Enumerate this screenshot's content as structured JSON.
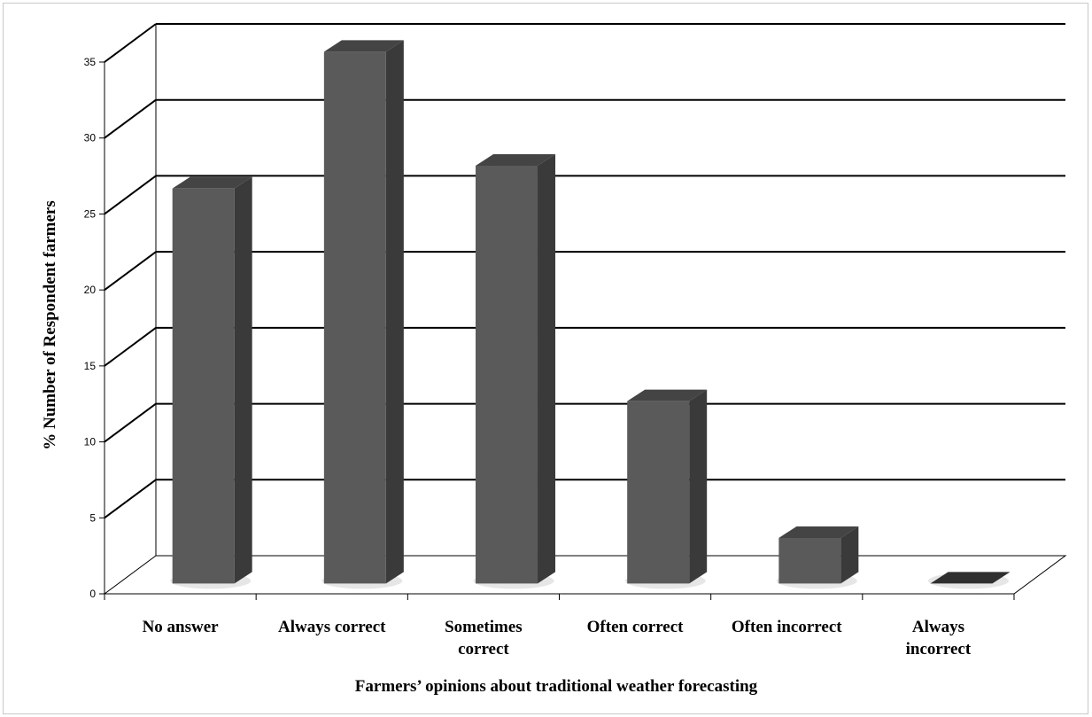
{
  "chart_data": {
    "type": "bar",
    "categories": [
      [
        "No answer"
      ],
      [
        "Always correct"
      ],
      [
        "Sometimes",
        "correct"
      ],
      [
        "Often correct"
      ],
      [
        "Often incorrect"
      ],
      [
        "Always",
        "incorrect"
      ]
    ],
    "values": [
      26,
      35,
      27.5,
      12,
      3,
      0
    ],
    "ylim": [
      0,
      35
    ],
    "yticks": [
      0,
      5,
      10,
      15,
      20,
      25,
      30,
      35
    ],
    "title": "",
    "xlabel": "Farmers’ opinions about traditional weather forecasting",
    "ylabel": "% Number of Respondent farmers",
    "grid": true,
    "legend": "none",
    "style": "3d-column",
    "colors": {
      "bar_front": "#5a5a5a",
      "bar_side": "#3a3a3a",
      "bar_top": "#444444",
      "grid": "#000000",
      "base_fill": "#ffffff"
    }
  }
}
